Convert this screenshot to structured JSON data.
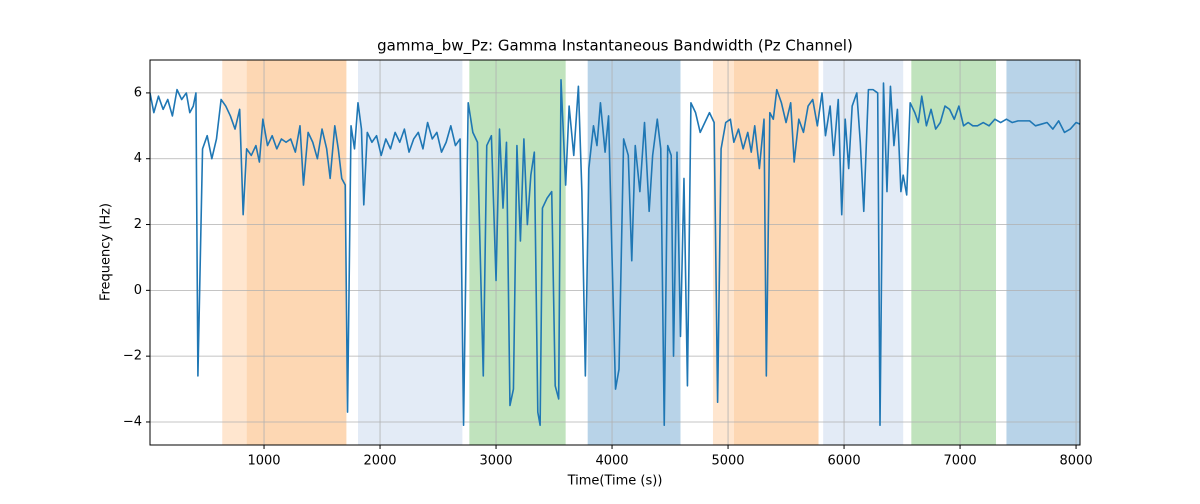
{
  "chart_data": {
    "type": "line",
    "title": "gamma_bw_Pz: Gamma Instantaneous Bandwidth (Pz Channel)",
    "x_label": "Time(Time (s))",
    "y_label": "Frequency (Hz)",
    "xlim": [
      17,
      8034
    ],
    "ylim": [
      -4.7,
      7.0
    ],
    "xticks": [
      1000,
      2000,
      3000,
      4000,
      5000,
      6000,
      7000,
      8000
    ],
    "yticks": [
      {
        "value": -4,
        "label": "−4"
      },
      {
        "value": -2,
        "label": "−2"
      },
      0,
      2,
      4,
      6
    ],
    "grid": true,
    "spans": [
      {
        "x0": 640,
        "x1": 850,
        "color": "#ffe6cf"
      },
      {
        "x0": 850,
        "x1": 1710,
        "color": "#fdd7b3"
      },
      {
        "x0": 1810,
        "x1": 2710,
        "color": "#e3ebf6"
      },
      {
        "x0": 2770,
        "x1": 3600,
        "color": "#c0e3bd"
      },
      {
        "x0": 3790,
        "x1": 4590,
        "color": "#b8d3e8"
      },
      {
        "x0": 4870,
        "x1": 5050,
        "color": "#ffe6cf"
      },
      {
        "x0": 5050,
        "x1": 5780,
        "color": "#fdd7b3"
      },
      {
        "x0": 5820,
        "x1": 6510,
        "color": "#e3ebf6"
      },
      {
        "x0": 6580,
        "x1": 7310,
        "color": "#c0e3bd"
      },
      {
        "x0": 7400,
        "x1": 8034,
        "color": "#b8d3e8"
      }
    ],
    "x": [
      17,
      50,
      90,
      130,
      170,
      210,
      250,
      290,
      330,
      360,
      390,
      413,
      430,
      470,
      510,
      550,
      590,
      630,
      670,
      710,
      750,
      790,
      820,
      850,
      890,
      930,
      960,
      990,
      1030,
      1070,
      1110,
      1150,
      1190,
      1230,
      1270,
      1310,
      1340,
      1380,
      1420,
      1460,
      1500,
      1540,
      1570,
      1610,
      1640,
      1670,
      1700,
      1720,
      1750,
      1780,
      1810,
      1840,
      1860,
      1890,
      1930,
      1970,
      2010,
      2050,
      2090,
      2130,
      2170,
      2210,
      2250,
      2290,
      2330,
      2370,
      2410,
      2450,
      2490,
      2530,
      2570,
      2610,
      2650,
      2690,
      2720,
      2760,
      2800,
      2840,
      2870,
      2890,
      2920,
      2960,
      3000,
      3030,
      3060,
      3090,
      3120,
      3150,
      3180,
      3210,
      3240,
      3270,
      3300,
      3330,
      3360,
      3380,
      3400,
      3440,
      3480,
      3510,
      3540,
      3560,
      3600,
      3630,
      3670,
      3710,
      3740,
      3770,
      3800,
      3840,
      3870,
      3900,
      3940,
      3970,
      4000,
      4030,
      4060,
      4100,
      4140,
      4170,
      4200,
      4240,
      4280,
      4320,
      4350,
      4390,
      4420,
      4450,
      4480,
      4510,
      4530,
      4560,
      4590,
      4620,
      4650,
      4680,
      4720,
      4760,
      4800,
      4840,
      4880,
      4910,
      4940,
      4980,
      5020,
      5050,
      5090,
      5130,
      5170,
      5200,
      5230,
      5270,
      5310,
      5330,
      5360,
      5390,
      5420,
      5460,
      5500,
      5540,
      5570,
      5610,
      5650,
      5690,
      5730,
      5770,
      5810,
      5840,
      5880,
      5910,
      5950,
      5980,
      6010,
      6040,
      6070,
      6110,
      6140,
      6170,
      6210,
      6250,
      6290,
      6310,
      6340,
      6370,
      6400,
      6430,
      6460,
      6490,
      6510,
      6540,
      6570,
      6610,
      6640,
      6670,
      6710,
      6750,
      6790,
      6830,
      6870,
      6910,
      6950,
      6990,
      7030,
      7070,
      7110,
      7150,
      7200,
      7250,
      7300,
      7350,
      7400,
      7450,
      7500,
      7550,
      7600,
      7650,
      7700,
      7750,
      7800,
      7850,
      7900,
      7950,
      8000,
      8034
    ],
    "series": [
      {
        "color": "#1f77b4",
        "values": [
          6.0,
          5.4,
          5.9,
          5.5,
          5.8,
          5.3,
          6.1,
          5.8,
          6.0,
          5.4,
          5.6,
          6.0,
          -2.6,
          4.3,
          4.7,
          4.0,
          4.6,
          5.8,
          5.6,
          5.3,
          4.9,
          5.5,
          2.3,
          4.3,
          4.1,
          4.4,
          3.9,
          5.2,
          4.4,
          4.7,
          4.3,
          4.6,
          4.5,
          4.6,
          4.2,
          5.0,
          3.2,
          4.8,
          4.5,
          4.0,
          4.9,
          4.3,
          3.4,
          5.0,
          4.3,
          3.4,
          3.2,
          -3.7,
          5.0,
          4.3,
          5.7,
          4.9,
          2.6,
          4.8,
          4.5,
          4.7,
          4.1,
          4.6,
          4.3,
          4.8,
          4.5,
          4.9,
          4.2,
          4.6,
          4.8,
          4.3,
          5.1,
          4.6,
          4.8,
          4.2,
          4.5,
          5.0,
          4.4,
          4.6,
          -4.1,
          5.7,
          4.8,
          4.5,
          0.2,
          -2.6,
          4.4,
          4.7,
          0.3,
          4.9,
          2.5,
          4.5,
          -3.5,
          -3.0,
          4.4,
          1.5,
          4.6,
          2.0,
          3.5,
          4.2,
          -3.7,
          -4.1,
          2.5,
          2.8,
          3.0,
          -2.9,
          -3.3,
          6.4,
          3.2,
          5.6,
          4.1,
          6.2,
          3.0,
          -2.6,
          3.7,
          5.0,
          4.4,
          5.7,
          4.2,
          5.3,
          1.0,
          -3.0,
          -2.4,
          4.6,
          4.1,
          0.9,
          4.4,
          3.0,
          5.1,
          2.4,
          4.1,
          5.2,
          4.3,
          -4.1,
          4.4,
          4.1,
          -2.0,
          4.2,
          -1.4,
          3.4,
          -2.9,
          5.7,
          5.4,
          4.8,
          5.1,
          5.4,
          5.1,
          -3.4,
          4.3,
          5.1,
          5.2,
          4.5,
          4.9,
          4.3,
          4.8,
          4.2,
          5.0,
          3.7,
          5.2,
          -2.6,
          5.4,
          5.2,
          6.1,
          5.7,
          5.1,
          5.7,
          3.9,
          5.2,
          4.8,
          5.6,
          5.8,
          5.0,
          6.0,
          4.7,
          5.6,
          4.1,
          5.8,
          2.3,
          5.2,
          3.7,
          5.6,
          6.0,
          4.5,
          2.4,
          6.1,
          6.1,
          6.0,
          -4.1,
          6.3,
          3.0,
          6.2,
          4.4,
          5.5,
          3.0,
          3.5,
          2.9,
          5.7,
          5.4,
          5.1,
          5.9,
          5.0,
          5.5,
          4.9,
          5.1,
          5.6,
          5.5,
          5.2,
          5.6,
          5.0,
          5.1,
          5.0,
          5.0,
          5.1,
          5.0,
          5.2,
          5.1,
          5.2,
          5.1,
          5.15,
          5.15,
          5.15,
          5.0,
          5.05,
          5.1,
          4.9,
          5.15,
          4.8,
          4.9,
          5.1,
          5.05
        ]
      }
    ]
  }
}
